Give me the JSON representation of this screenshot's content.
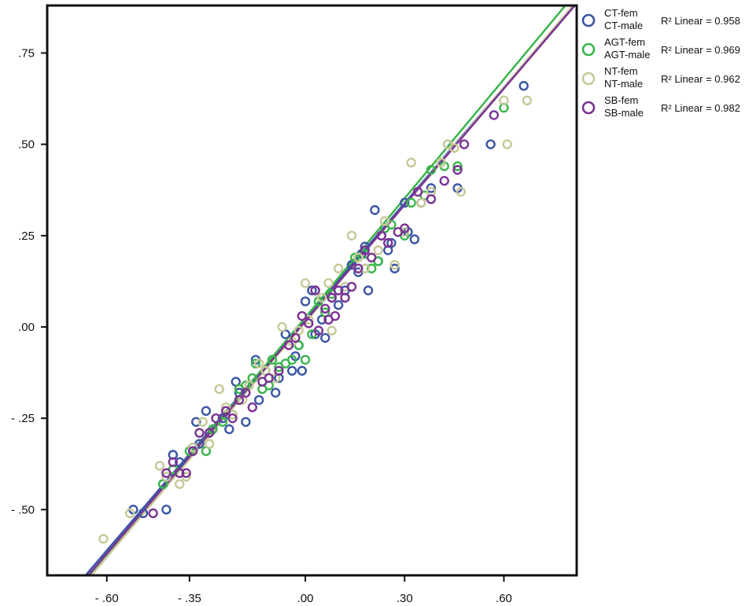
{
  "chart_data": {
    "type": "scatter",
    "xlabel": "",
    "ylabel": "",
    "xlim": [
      -0.78,
      0.82
    ],
    "ylim": [
      -0.68,
      0.88
    ],
    "x_ticks": [
      -0.6,
      -0.35,
      0.0,
      0.3,
      0.6
    ],
    "x_tick_labels": [
      "- .60",
      "- .35",
      ".00",
      ".30",
      ".60"
    ],
    "y_ticks": [
      0.75,
      0.5,
      0.25,
      0.0,
      -0.25,
      -0.5
    ],
    "y_tick_labels": [
      ".75",
      ".50",
      ".25",
      ".00",
      "- .25",
      "- .50"
    ],
    "legend_position": "right",
    "series": [
      {
        "name": "CT-fem\nCT-male",
        "color": "#3a55a5",
        "r2": "R² Linear = 0.958",
        "fit": {
          "slope": 1.057,
          "intercept": 0.022
        },
        "points": [
          [
            -0.52,
            -0.5
          ],
          [
            -0.49,
            -0.51
          ],
          [
            -0.43,
            -0.43
          ],
          [
            -0.42,
            -0.5
          ],
          [
            -0.4,
            -0.35
          ],
          [
            -0.38,
            -0.37
          ],
          [
            -0.33,
            -0.26
          ],
          [
            -0.32,
            -0.32
          ],
          [
            -0.3,
            -0.23
          ],
          [
            -0.28,
            -0.28
          ],
          [
            -0.25,
            -0.25
          ],
          [
            -0.23,
            -0.28
          ],
          [
            -0.21,
            -0.15
          ],
          [
            -0.2,
            -0.18
          ],
          [
            -0.18,
            -0.26
          ],
          [
            -0.15,
            -0.09
          ],
          [
            -0.14,
            -0.2
          ],
          [
            -0.12,
            -0.12
          ],
          [
            -0.09,
            -0.18
          ],
          [
            -0.08,
            -0.14
          ],
          [
            -0.06,
            -0.02
          ],
          [
            -0.04,
            -0.12
          ],
          [
            -0.03,
            -0.08
          ],
          [
            -0.02,
            -0.05
          ],
          [
            -0.01,
            -0.12
          ],
          [
            0.0,
            0.07
          ],
          [
            0.02,
            0.1
          ],
          [
            0.03,
            -0.02
          ],
          [
            0.05,
            0.02
          ],
          [
            0.06,
            -0.03
          ],
          [
            0.08,
            0.08
          ],
          [
            0.1,
            0.06
          ],
          [
            0.12,
            0.1
          ],
          [
            0.14,
            0.17
          ],
          [
            0.16,
            0.15
          ],
          [
            0.17,
            0.2
          ],
          [
            0.18,
            0.22
          ],
          [
            0.19,
            0.1
          ],
          [
            0.21,
            0.32
          ],
          [
            0.22,
            0.18
          ],
          [
            0.23,
            0.25
          ],
          [
            0.25,
            0.21
          ],
          [
            0.26,
            0.23
          ],
          [
            0.27,
            0.16
          ],
          [
            0.3,
            0.34
          ],
          [
            0.31,
            0.26
          ],
          [
            0.33,
            0.24
          ],
          [
            0.35,
            0.34
          ],
          [
            0.38,
            0.38
          ],
          [
            0.46,
            0.38
          ],
          [
            0.56,
            0.5
          ],
          [
            0.66,
            0.66
          ]
        ]
      },
      {
        "name": "AGT-fem\nAGT-male",
        "color": "#39b54a",
        "r2": "R² Linear = 0.969",
        "fit": {
          "slope": 1.087,
          "intercept": 0.026
        },
        "points": [
          [
            -0.43,
            -0.43
          ],
          [
            -0.4,
            -0.39
          ],
          [
            -0.35,
            -0.34
          ],
          [
            -0.3,
            -0.34
          ],
          [
            -0.28,
            -0.28
          ],
          [
            -0.25,
            -0.26
          ],
          [
            -0.22,
            -0.24
          ],
          [
            -0.2,
            -0.17
          ],
          [
            -0.18,
            -0.16
          ],
          [
            -0.16,
            -0.14
          ],
          [
            -0.15,
            -0.1
          ],
          [
            -0.13,
            -0.17
          ],
          [
            -0.11,
            -0.16
          ],
          [
            -0.1,
            -0.09
          ],
          [
            -0.08,
            -0.11
          ],
          [
            -0.06,
            -0.1
          ],
          [
            -0.04,
            -0.09
          ],
          [
            -0.02,
            -0.05
          ],
          [
            0.0,
            -0.09
          ],
          [
            0.02,
            -0.02
          ],
          [
            0.04,
            0.07
          ],
          [
            0.06,
            0.04
          ],
          [
            0.08,
            0.09
          ],
          [
            0.12,
            0.08
          ],
          [
            0.15,
            0.19
          ],
          [
            0.18,
            0.2
          ],
          [
            0.2,
            0.16
          ],
          [
            0.22,
            0.18
          ],
          [
            0.24,
            0.27
          ],
          [
            0.26,
            0.28
          ],
          [
            0.3,
            0.25
          ],
          [
            0.32,
            0.34
          ],
          [
            0.36,
            0.36
          ],
          [
            0.38,
            0.43
          ],
          [
            0.42,
            0.44
          ],
          [
            0.46,
            0.44
          ],
          [
            0.6,
            0.6
          ]
        ]
      },
      {
        "name": "NT-fem\nNT-male",
        "color": "#c6c898",
        "r2": "R² Linear = 0.962",
        "fit": {
          "slope": 1.072,
          "intercept": 0.013
        },
        "points": [
          [
            -0.61,
            -0.58
          ],
          [
            -0.53,
            -0.51
          ],
          [
            -0.44,
            -0.38
          ],
          [
            -0.42,
            -0.41
          ],
          [
            -0.38,
            -0.43
          ],
          [
            -0.36,
            -0.41
          ],
          [
            -0.34,
            -0.33
          ],
          [
            -0.31,
            -0.26
          ],
          [
            -0.29,
            -0.32
          ],
          [
            -0.26,
            -0.17
          ],
          [
            -0.24,
            -0.22
          ],
          [
            -0.22,
            -0.24
          ],
          [
            -0.19,
            -0.2
          ],
          [
            -0.17,
            -0.16
          ],
          [
            -0.14,
            -0.1
          ],
          [
            -0.12,
            -0.12
          ],
          [
            -0.09,
            -0.14
          ],
          [
            -0.07,
            0.0
          ],
          [
            -0.04,
            -0.04
          ],
          [
            -0.02,
            -0.01
          ],
          [
            0.0,
            0.12
          ],
          [
            0.01,
            0.02
          ],
          [
            0.03,
            0.1
          ],
          [
            0.05,
            0.08
          ],
          [
            0.07,
            0.12
          ],
          [
            0.08,
            -0.01
          ],
          [
            0.1,
            0.16
          ],
          [
            0.12,
            0.11
          ],
          [
            0.14,
            0.25
          ],
          [
            0.16,
            0.19
          ],
          [
            0.18,
            0.16
          ],
          [
            0.2,
            0.19
          ],
          [
            0.22,
            0.21
          ],
          [
            0.24,
            0.29
          ],
          [
            0.27,
            0.17
          ],
          [
            0.3,
            0.26
          ],
          [
            0.32,
            0.45
          ],
          [
            0.35,
            0.34
          ],
          [
            0.38,
            0.37
          ],
          [
            0.41,
            0.45
          ],
          [
            0.43,
            0.5
          ],
          [
            0.45,
            0.49
          ],
          [
            0.47,
            0.37
          ],
          [
            0.6,
            0.62
          ],
          [
            0.61,
            0.5
          ],
          [
            0.67,
            0.62
          ]
        ]
      },
      {
        "name": "SB-fem\nSB-male",
        "color": "#7b3294",
        "r2": "R² Linear = 0.982",
        "fit": {
          "slope": 1.061,
          "intercept": 0.016
        },
        "points": [
          [
            -0.46,
            -0.51
          ],
          [
            -0.42,
            -0.4
          ],
          [
            -0.4,
            -0.37
          ],
          [
            -0.38,
            -0.4
          ],
          [
            -0.36,
            -0.4
          ],
          [
            -0.34,
            -0.34
          ],
          [
            -0.32,
            -0.29
          ],
          [
            -0.29,
            -0.29
          ],
          [
            -0.27,
            -0.25
          ],
          [
            -0.24,
            -0.23
          ],
          [
            -0.22,
            -0.25
          ],
          [
            -0.2,
            -0.2
          ],
          [
            -0.18,
            -0.18
          ],
          [
            -0.16,
            -0.22
          ],
          [
            -0.13,
            -0.15
          ],
          [
            -0.11,
            -0.14
          ],
          [
            -0.08,
            -0.12
          ],
          [
            -0.05,
            -0.05
          ],
          [
            -0.03,
            -0.03
          ],
          [
            -0.01,
            0.03
          ],
          [
            0.01,
            0.01
          ],
          [
            0.03,
            0.1
          ],
          [
            0.04,
            -0.01
          ],
          [
            0.06,
            0.05
          ],
          [
            0.07,
            0.02
          ],
          [
            0.08,
            0.08
          ],
          [
            0.09,
            0.03
          ],
          [
            0.1,
            0.1
          ],
          [
            0.12,
            0.08
          ],
          [
            0.14,
            0.11
          ],
          [
            0.16,
            0.16
          ],
          [
            0.18,
            0.21
          ],
          [
            0.2,
            0.19
          ],
          [
            0.23,
            0.25
          ],
          [
            0.25,
            0.23
          ],
          [
            0.28,
            0.26
          ],
          [
            0.3,
            0.27
          ],
          [
            0.34,
            0.37
          ],
          [
            0.38,
            0.35
          ],
          [
            0.42,
            0.4
          ],
          [
            0.46,
            0.43
          ],
          [
            0.48,
            0.5
          ],
          [
            0.57,
            0.58
          ]
        ]
      }
    ]
  }
}
